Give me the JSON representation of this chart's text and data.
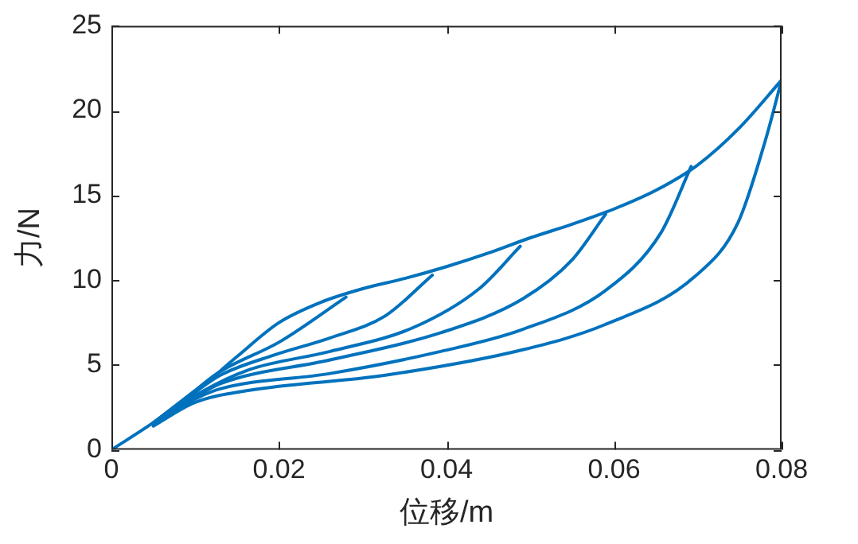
{
  "chart_data": {
    "type": "line",
    "xlabel": "位移/m",
    "ylabel": "力/N",
    "xlim": [
      0,
      0.08
    ],
    "ylim": [
      0,
      25
    ],
    "xticks": [
      0,
      0.02,
      0.04,
      0.06,
      0.08
    ],
    "yticks": [
      0,
      5,
      10,
      15,
      20,
      25
    ],
    "grid": false,
    "legend": false,
    "marker": "none",
    "line_style": "solid",
    "series": [
      {
        "color": "#0072bd",
        "x": [
          0,
          0.005,
          0.01,
          0.015,
          0.02,
          0.025,
          0.03,
          0.035,
          0.04,
          0.045,
          0.05,
          0.055,
          0.06,
          0.065,
          0.07,
          0.075,
          0.08
        ],
        "values": [
          0,
          1.6,
          3.4,
          5.5,
          7.5,
          8.7,
          9.5,
          10.1,
          10.8,
          11.6,
          12.5,
          13.3,
          14.2,
          15.3,
          16.8,
          19.0,
          21.8
        ]
      },
      {
        "color": "#0072bd",
        "x": [
          0.005,
          0.01,
          0.0126,
          0.0202,
          0.028
        ],
        "values": [
          1.6,
          3.5,
          4.5,
          6.4,
          9.0
        ]
      },
      {
        "color": "#0072bd",
        "x": [
          0.005,
          0.01,
          0.013,
          0.0195,
          0.0261,
          0.0327,
          0.0383
        ],
        "values": [
          1.6,
          3.4,
          4.4,
          5.6,
          6.6,
          7.9,
          10.3
        ]
      },
      {
        "color": "#0072bd",
        "x": [
          0.005,
          0.01,
          0.0163,
          0.0261,
          0.036,
          0.0439,
          0.0488
        ],
        "values": [
          1.5,
          3.2,
          4.7,
          5.8,
          7.2,
          9.5,
          12.0
        ]
      },
      {
        "color": "#0072bd",
        "x": [
          0.005,
          0.01,
          0.013,
          0.0261,
          0.0393,
          0.0491,
          0.055,
          0.059
        ],
        "values": [
          1.5,
          3.1,
          3.9,
          5.3,
          6.9,
          8.9,
          11.2,
          13.9
        ]
      },
      {
        "color": "#0072bd",
        "x": [
          0.005,
          0.01,
          0.013,
          0.0261,
          0.0393,
          0.0491,
          0.059,
          0.0656,
          0.0692
        ],
        "values": [
          1.5,
          3.0,
          3.6,
          4.5,
          5.8,
          7.1,
          9.4,
          12.8,
          16.7
        ]
      },
      {
        "color": "#0072bd",
        "x": [
          0.005,
          0.01,
          0.0163,
          0.0327,
          0.0491,
          0.059,
          0.0696,
          0.0748,
          0.0781,
          0.08
        ],
        "values": [
          1.4,
          2.8,
          3.5,
          4.4,
          5.9,
          7.4,
          10.2,
          13.4,
          18.3,
          21.8
        ]
      }
    ]
  }
}
